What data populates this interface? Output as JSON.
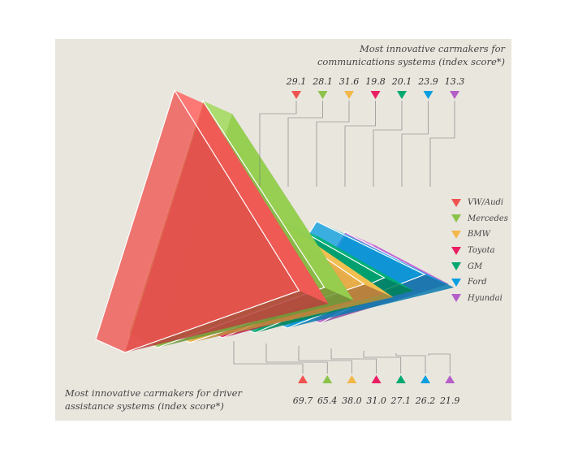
{
  "chart_data": {
    "type": "bar",
    "title_top": "Most innovative carmakers for communications systems (index score*)",
    "title_bottom": "Most innovative carmakers for driver assistance systems (index score*)",
    "series": [
      {
        "name": "VW/Audi",
        "color": "#ef5350",
        "communications": 29.1,
        "driver_assistance": 69.7
      },
      {
        "name": "Mercedes",
        "color": "#8bc34a",
        "communications": 28.1,
        "driver_assistance": 65.4
      },
      {
        "name": "BMW",
        "color": "#f2b84b",
        "communications": 31.6,
        "driver_assistance": 38.0
      },
      {
        "name": "Toyota",
        "color": "#e91e63",
        "communications": 19.8,
        "driver_assistance": 31.0
      },
      {
        "name": "GM",
        "color": "#00a870",
        "communications": 20.1,
        "driver_assistance": 27.1
      },
      {
        "name": "Ford",
        "color": "#0a9ee0",
        "communications": 23.9,
        "driver_assistance": 26.2
      },
      {
        "name": "Hyundai",
        "color": "#b55fc8",
        "communications": 13.3,
        "driver_assistance": 21.9
      }
    ],
    "top_labels": [
      "29.1",
      "28.1",
      "31.6",
      "19.8",
      "20.1",
      "23.9",
      "13.3"
    ],
    "bottom_labels": [
      "69.7",
      "65.4",
      "38.0",
      "31.0",
      "27.1",
      "26.2",
      "21.9"
    ]
  }
}
